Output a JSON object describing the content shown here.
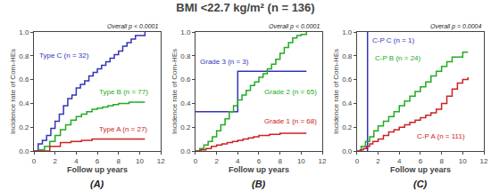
{
  "title": "BMI <22.7 kg/m² (n = 136)",
  "chart_data": [
    {
      "type": "line",
      "title": "(A)",
      "annotations": [
        "Overall p < 0.0001"
      ],
      "xlabel": "Follow up years",
      "ylabel": "Incidence rate of Com-HEs",
      "xlim": [
        0,
        12
      ],
      "ylim": [
        0.0,
        1.0
      ],
      "xticks": [
        0,
        2,
        4,
        6,
        8,
        10,
        12
      ],
      "yticks": [
        {
          "value": 0.0,
          "label": "0.0"
        },
        0.2,
        0.4,
        0.6,
        0.8,
        {
          "value": 1.0,
          "label": "1.0"
        }
      ],
      "grid": false,
      "series": [
        {
          "name": "Type C (n = 32)",
          "color": "#3333bb",
          "type": "step",
          "x": [
            0,
            0.4,
            0.8,
            1.2,
            1.6,
            2.0,
            2.4,
            2.8,
            3.2,
            3.6,
            4.0,
            4.4,
            4.8,
            5.2,
            5.6,
            6.0,
            6.4,
            6.8,
            7.2,
            7.6,
            8.0,
            8.4,
            8.8,
            9.2,
            9.6,
            10.0,
            10.5
          ],
          "values": [
            0,
            0.06,
            0.09,
            0.13,
            0.19,
            0.25,
            0.31,
            0.38,
            0.44,
            0.47,
            0.53,
            0.56,
            0.59,
            0.63,
            0.66,
            0.69,
            0.72,
            0.75,
            0.78,
            0.81,
            0.84,
            0.88,
            0.91,
            0.94,
            0.97,
            0.97,
            1.0
          ]
        },
        {
          "name": "Type B (n = 77)",
          "color": "#22aa22",
          "type": "step",
          "x": [
            0,
            0.5,
            1.0,
            1.5,
            2.0,
            2.5,
            3.0,
            3.5,
            4.0,
            4.5,
            5.0,
            5.5,
            6.0,
            6.5,
            7.0,
            7.5,
            8.0,
            8.5,
            9.0,
            9.5,
            10.0,
            10.5
          ],
          "values": [
            0,
            0.01,
            0.04,
            0.08,
            0.13,
            0.18,
            0.22,
            0.26,
            0.29,
            0.31,
            0.33,
            0.35,
            0.36,
            0.37,
            0.38,
            0.39,
            0.4,
            0.4,
            0.41,
            0.41,
            0.41,
            0.41
          ]
        },
        {
          "name": "Type A (n = 27)",
          "color": "#cc2222",
          "type": "step",
          "x": [
            0,
            1.5,
            2.5,
            3.5,
            4.5,
            5.5,
            6.5,
            7.5,
            8.5,
            9.5,
            10.5
          ],
          "values": [
            0,
            0.04,
            0.07,
            0.08,
            0.09,
            0.1,
            0.1,
            0.1,
            0.1,
            0.1,
            0.1
          ]
        }
      ]
    },
    {
      "type": "line",
      "title": "(B)",
      "annotations": [
        "Overall p < 0.0001"
      ],
      "xlabel": "Follow up years",
      "ylabel": "Incidence rate of Com-HEs",
      "xlim": [
        0,
        12
      ],
      "ylim": [
        0.0,
        1.0
      ],
      "xticks": [
        0,
        2,
        4,
        6,
        8,
        10,
        12
      ],
      "yticks": [
        {
          "value": 0.0,
          "label": "0.0"
        },
        0.2,
        0.4,
        0.6,
        0.8,
        {
          "value": 1.0,
          "label": "1.0"
        }
      ],
      "grid": false,
      "series": [
        {
          "name": "Grade 3 (n = 3)",
          "color": "#3333bb",
          "type": "step",
          "x": [
            0,
            0.5,
            2.0,
            4.0,
            10.5
          ],
          "values": [
            0.33,
            0.33,
            0.33,
            0.67,
            0.67
          ]
        },
        {
          "name": "Grade 2 (n = 65)",
          "color": "#22aa22",
          "type": "step",
          "x": [
            0,
            0.4,
            0.8,
            1.2,
            1.6,
            2.0,
            2.4,
            2.8,
            3.2,
            3.6,
            4.0,
            4.4,
            4.8,
            5.2,
            5.6,
            6.0,
            6.4,
            6.8,
            7.2,
            7.6,
            8.0,
            8.4,
            8.8,
            9.2,
            9.6,
            10.0,
            10.5
          ],
          "values": [
            0,
            0.02,
            0.05,
            0.08,
            0.12,
            0.17,
            0.22,
            0.27,
            0.33,
            0.38,
            0.43,
            0.47,
            0.51,
            0.55,
            0.58,
            0.62,
            0.65,
            0.69,
            0.73,
            0.77,
            0.82,
            0.87,
            0.91,
            0.95,
            0.97,
            0.98,
            1.0
          ]
        },
        {
          "name": "Grade 1 (n = 68)",
          "color": "#cc2222",
          "type": "step",
          "x": [
            0,
            0.5,
            1.0,
            1.5,
            2.0,
            2.5,
            3.0,
            3.5,
            4.0,
            4.5,
            5.0,
            5.5,
            6.0,
            6.5,
            7.0,
            7.5,
            8.0,
            8.5,
            9.0,
            9.5,
            10.0,
            10.5
          ],
          "values": [
            0,
            0.01,
            0.02,
            0.04,
            0.05,
            0.06,
            0.07,
            0.08,
            0.09,
            0.1,
            0.11,
            0.12,
            0.13,
            0.13,
            0.14,
            0.14,
            0.15,
            0.15,
            0.15,
            0.15,
            0.15,
            0.15
          ]
        }
      ]
    },
    {
      "type": "line",
      "title": "(C)",
      "annotations": [
        "Overall p = 0.0004"
      ],
      "xlabel": "Follow up years",
      "ylabel": "Incidence rate of Com-HEs",
      "xlim": [
        0,
        12
      ],
      "ylim": [
        0.0,
        1.0
      ],
      "xticks": [
        0,
        2,
        4,
        6,
        8,
        10,
        12
      ],
      "yticks": [
        {
          "value": 0.0,
          "label": "0.0"
        },
        0.2,
        0.4,
        0.6,
        0.8,
        {
          "value": 1.0,
          "label": "1.0"
        }
      ],
      "grid": false,
      "series": [
        {
          "name": "C-P C (n = 1)",
          "color": "#3333bb",
          "type": "line",
          "x": [
            1.0,
            1.0
          ],
          "values": [
            0.0,
            1.0
          ]
        },
        {
          "name": "C-P B (n = 24)",
          "color": "#22aa22",
          "type": "step",
          "x": [
            0,
            0.4,
            0.8,
            1.2,
            1.6,
            2.0,
            2.5,
            3.0,
            3.5,
            4.0,
            4.5,
            5.0,
            5.5,
            6.0,
            6.5,
            7.0,
            7.5,
            8.0,
            8.5,
            9.0,
            9.5,
            10.0,
            10.5
          ],
          "values": [
            0,
            0.04,
            0.08,
            0.12,
            0.17,
            0.21,
            0.25,
            0.29,
            0.33,
            0.38,
            0.42,
            0.46,
            0.5,
            0.54,
            0.58,
            0.63,
            0.67,
            0.71,
            0.75,
            0.79,
            0.79,
            0.83,
            0.83
          ]
        },
        {
          "name": "C-P A (n = 111)",
          "color": "#cc2222",
          "type": "step",
          "x": [
            0,
            0.3,
            0.6,
            0.9,
            1.2,
            1.5,
            2.0,
            2.5,
            3.0,
            3.5,
            4.0,
            4.5,
            5.0,
            5.5,
            6.0,
            6.5,
            7.0,
            7.5,
            8.0,
            8.5,
            9.0,
            9.5,
            10.0,
            10.5
          ],
          "values": [
            0,
            0.01,
            0.02,
            0.04,
            0.06,
            0.08,
            0.1,
            0.13,
            0.16,
            0.18,
            0.2,
            0.22,
            0.24,
            0.26,
            0.28,
            0.3,
            0.32,
            0.35,
            0.4,
            0.46,
            0.52,
            0.57,
            0.6,
            0.62
          ]
        }
      ]
    }
  ]
}
